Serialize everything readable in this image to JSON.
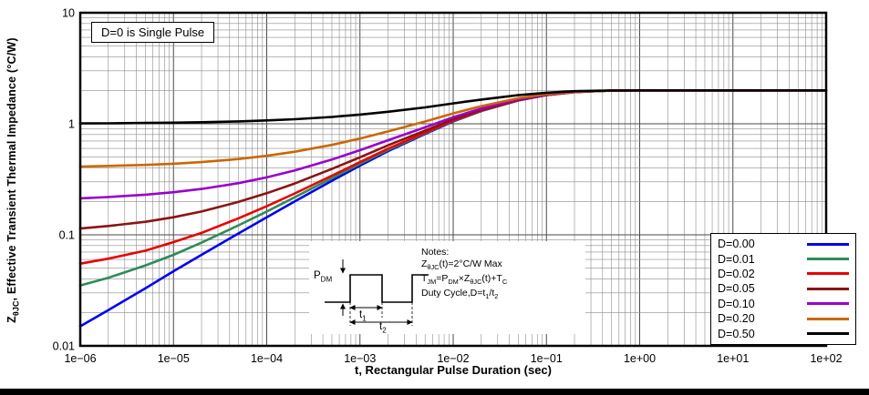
{
  "colors": {
    "background": "#ffffff",
    "bottom_bar": "#000000",
    "grid_major": "#4a4a4a",
    "grid_minor": "#8c8c8c",
    "plot_border": "#000000"
  },
  "chart_data": {
    "type": "line",
    "x_scale": "log",
    "y_scale": "log",
    "xlim": [
      1e-06,
      100
    ],
    "ylim": [
      0.01,
      10
    ],
    "grid": "on, log major+minor",
    "legend_position": "lower right",
    "xlabel": "t, Rectangular Pulse Duration (sec)",
    "ylabel_parts": {
      "base": "Z",
      "sub": "θJC",
      "rest": ", Effective Transient Thermal Impedance (°C/W)"
    },
    "annotation": "D=0 is Single Pulse",
    "x_ticks": [
      {
        "value": 1e-06,
        "label": "1e−06"
      },
      {
        "value": 1e-05,
        "label": "1e−05"
      },
      {
        "value": 0.0001,
        "label": "1e−04"
      },
      {
        "value": 0.001,
        "label": "1e−03"
      },
      {
        "value": 0.01,
        "label": "1e−02"
      },
      {
        "value": 0.1,
        "label": "1e−01"
      },
      {
        "value": 1,
        "label": "1e+00"
      },
      {
        "value": 10,
        "label": "1e+01"
      },
      {
        "value": 100,
        "label": "1e+02"
      }
    ],
    "y_ticks": [
      {
        "value": 0.01,
        "label": "0.01"
      },
      {
        "value": 0.1,
        "label": "0.1"
      },
      {
        "value": 1,
        "label": "1"
      },
      {
        "value": 10,
        "label": "10"
      }
    ],
    "x": [
      1e-06,
      2e-06,
      5e-06,
      1e-05,
      2e-05,
      5e-05,
      0.0001,
      0.0002,
      0.0005,
      0.001,
      0.002,
      0.005,
      0.01,
      0.02,
      0.05,
      0.1,
      0.2,
      0.5,
      1,
      10,
      100
    ],
    "series": [
      {
        "label": "D=0.00",
        "color": "#0000ee",
        "values": [
          0.015,
          0.021,
          0.033,
          0.047,
          0.066,
          0.103,
          0.144,
          0.2,
          0.307,
          0.42,
          0.567,
          0.81,
          1.051,
          1.303,
          1.622,
          1.811,
          1.929,
          1.99,
          1.999,
          2.0,
          2.0
        ]
      },
      {
        "label": "D=0.01",
        "color": "#2e8b57",
        "values": [
          0.035,
          0.041,
          0.053,
          0.066,
          0.085,
          0.122,
          0.162,
          0.218,
          0.324,
          0.436,
          0.581,
          0.822,
          1.061,
          1.31,
          1.626,
          1.813,
          1.929,
          1.99,
          1.999,
          2.0,
          2.0
        ]
      },
      {
        "label": "D=0.02",
        "color": "#e80000",
        "values": [
          0.055,
          0.061,
          0.072,
          0.086,
          0.104,
          0.141,
          0.181,
          0.236,
          0.341,
          0.452,
          0.596,
          0.833,
          1.07,
          1.317,
          1.63,
          1.815,
          1.93,
          1.99,
          1.999,
          2.0,
          2.0
        ]
      },
      {
        "label": "D=0.05",
        "color": "#8b1414",
        "values": [
          0.114,
          0.12,
          0.131,
          0.144,
          0.162,
          0.198,
          0.237,
          0.29,
          0.392,
          0.499,
          0.639,
          0.869,
          1.099,
          1.338,
          1.641,
          1.82,
          1.932,
          1.99,
          1.999,
          2.0,
          2.0
        ]
      },
      {
        "label": "D=0.10",
        "color": "#9900cc",
        "values": [
          0.213,
          0.219,
          0.23,
          0.242,
          0.259,
          0.292,
          0.329,
          0.38,
          0.476,
          0.578,
          0.71,
          0.929,
          1.146,
          1.373,
          1.66,
          1.83,
          1.936,
          1.991,
          1.999,
          2.0,
          2.0
        ]
      },
      {
        "label": "D=0.20",
        "color": "#cc6600",
        "values": [
          0.412,
          0.417,
          0.426,
          0.437,
          0.452,
          0.482,
          0.515,
          0.56,
          0.646,
          0.736,
          0.853,
          1.048,
          1.241,
          1.443,
          1.698,
          1.849,
          1.943,
          1.992,
          1.999,
          2.0,
          2.0
        ]
      },
      {
        "label": "D=0.50",
        "color": "#000000",
        "values": [
          1.007,
          1.01,
          1.017,
          1.023,
          1.033,
          1.051,
          1.072,
          1.1,
          1.153,
          1.21,
          1.283,
          1.405,
          1.526,
          1.652,
          1.811,
          1.905,
          1.964,
          1.995,
          1.999,
          2.0,
          2.0
        ]
      }
    ]
  },
  "inset": {
    "pdm": {
      "base": "P",
      "sub": "DM"
    },
    "t1": {
      "base": "t",
      "sub": "1"
    },
    "t2": {
      "base": "t",
      "sub": "2"
    },
    "notes": {
      "title": "Notes:",
      "line1": {
        "a": "Z",
        "b": "θJC",
        "c": "(t)=2°C/W Max"
      },
      "line2": {
        "a": "T",
        "b": "JM",
        "c": "=P",
        "d": "DM",
        "e": "×Z",
        "f": "θJC",
        "g": "(t)+T",
        "h": "C"
      },
      "line3": {
        "a": "Duty Cycle,D=t",
        "b": "1",
        "c": "/t",
        "d": "2"
      }
    }
  }
}
